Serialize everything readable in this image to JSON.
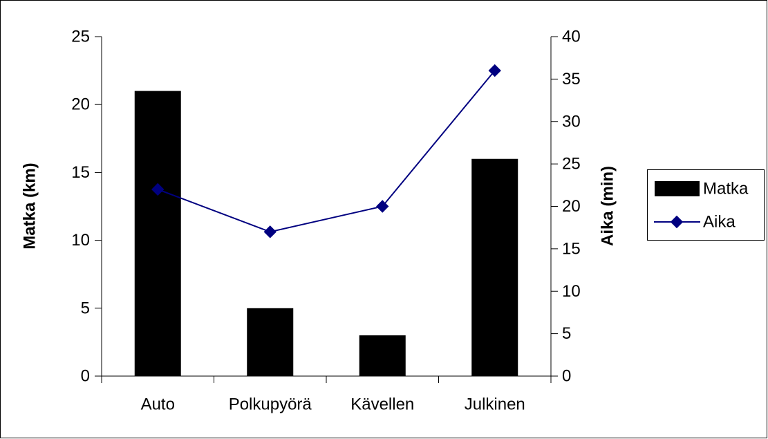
{
  "chart_data": {
    "type": "bar",
    "title": "",
    "categories": [
      "Auto",
      "Polkupyörä",
      "Kävellen",
      "Julkinen"
    ],
    "series": [
      {
        "name": "Matka",
        "type": "bar",
        "axis": "left",
        "values": [
          21,
          5,
          3,
          16
        ],
        "color": "#000000"
      },
      {
        "name": "Aika",
        "type": "line",
        "axis": "right",
        "values": [
          22,
          17,
          20,
          36
        ],
        "color": "#000080",
        "marker": "diamond"
      }
    ],
    "y_left": {
      "label": "Matka (km)",
      "min": 0,
      "max": 25,
      "step": 5
    },
    "y_right": {
      "label": "Aika (min)",
      "min": 0,
      "max": 40,
      "step": 5
    },
    "grid": false,
    "legend": "right"
  }
}
